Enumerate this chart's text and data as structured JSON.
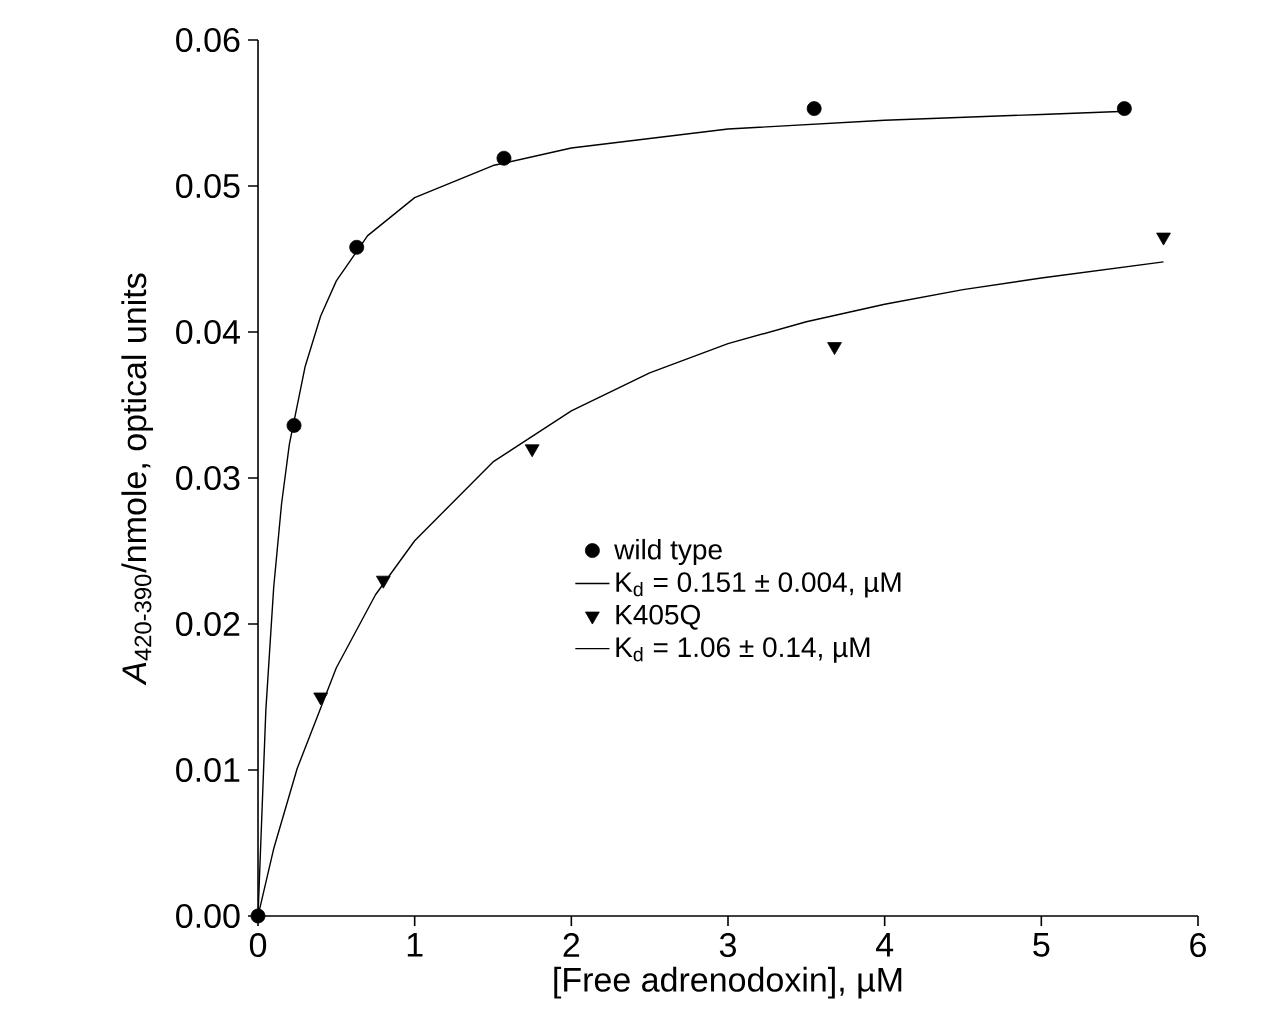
{
  "chart_data": {
    "type": "scatter",
    "xlabel": "[Free adrenodoxin], µM",
    "ylabel": "*A*$_{420-390}$/nmole, optical units",
    "xlim": [
      0,
      6
    ],
    "ylim": [
      0,
      0.06
    ],
    "xticks": [
      0,
      1,
      2,
      3,
      4,
      5,
      6
    ],
    "yticks": [
      {
        "value": 0,
        "label": "0.00"
      },
      0.01,
      0.02,
      0.03,
      0.04,
      0.05,
      0.06
    ],
    "grid": false,
    "legend": "right",
    "series": [
      {
        "name": "wild type",
        "marker": "circle",
        "color": "#000000",
        "x": [
          0,
          0.23,
          0.63,
          1.57,
          3.55,
          5.53
        ],
        "values": [
          0,
          0.0336,
          0.0458,
          0.0519,
          0.0553,
          0.0553
        ]
      },
      {
        "name": "K$_{d}$ = 0.151 ± 0.004, µM",
        "type": "line",
        "marker": "none",
        "color": "#000000",
        "x": [
          0,
          0.05,
          0.1,
          0.15,
          0.2,
          0.3,
          0.4,
          0.5,
          0.7,
          1,
          1.5,
          2,
          3,
          4,
          5,
          5.5
        ],
        "values": [
          0,
          0.0141,
          0.0225,
          0.0282,
          0.0323,
          0.0376,
          0.0411,
          0.0435,
          0.0466,
          0.0492,
          0.0514,
          0.0526,
          0.0539,
          0.0545,
          0.0549,
          0.0551
        ]
      },
      {
        "name": "K405Q",
        "marker": "triangle",
        "color": "#000000",
        "x": [
          0.4,
          0.8,
          1.75,
          3.68,
          5.78
        ],
        "values": [
          0.015,
          0.023,
          0.032,
          0.039,
          0.0465
        ]
      },
      {
        "name": "K$_{d}$ = 1.06 ± 0.14, µM",
        "type": "line",
        "marker": "none",
        "color": "#000000",
        "x": [
          0,
          0.1,
          0.25,
          0.5,
          0.75,
          1,
          1.5,
          2,
          2.5,
          3,
          3.5,
          4,
          4.5,
          5,
          5.78
        ],
        "values": [
          0,
          0.0046,
          0.0101,
          0.017,
          0.022,
          0.0257,
          0.0311,
          0.0346,
          0.0372,
          0.0392,
          0.0407,
          0.0419,
          0.0429,
          0.0437,
          0.0448
        ]
      }
    ]
  }
}
